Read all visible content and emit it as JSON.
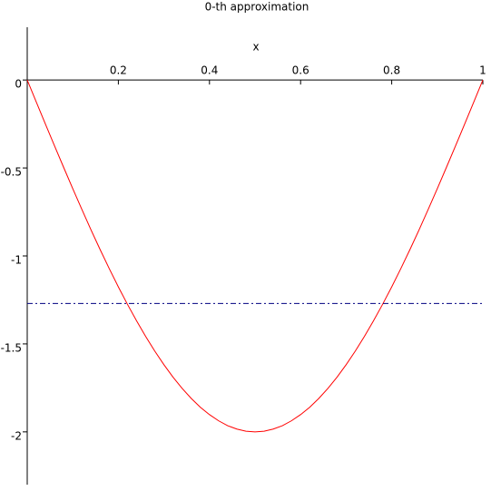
{
  "chart_data": {
    "type": "line",
    "title": "0-th approximation",
    "x_label": "x",
    "xlim": [
      0,
      1
    ],
    "ylim": [
      -2.3,
      0.3
    ],
    "xticks": [
      0.2,
      0.4,
      0.6,
      0.8,
      1
    ],
    "yticks": [
      0,
      -0.5,
      -1,
      -1.5,
      -2
    ],
    "series": [
      {
        "color": "#ff0000",
        "dash": "solid",
        "x": [
          0,
          0.02,
          0.04,
          0.06,
          0.08,
          0.1,
          0.12,
          0.14,
          0.16,
          0.18,
          0.2,
          0.22,
          0.24,
          0.26,
          0.28,
          0.3,
          0.32,
          0.34,
          0.36,
          0.38,
          0.4,
          0.42,
          0.44,
          0.46,
          0.48,
          0.5,
          0.52,
          0.54,
          0.56,
          0.58,
          0.6,
          0.62,
          0.64,
          0.66,
          0.68,
          0.7,
          0.72,
          0.74,
          0.76,
          0.78,
          0.8,
          0.82,
          0.84,
          0.86,
          0.88,
          0.9,
          0.92,
          0.94,
          0.96,
          0.98,
          1
        ],
        "values": [
          0,
          -0.126,
          -0.251,
          -0.375,
          -0.497,
          -0.618,
          -0.736,
          -0.852,
          -0.964,
          -1.072,
          -1.176,
          -1.275,
          -1.369,
          -1.458,
          -1.541,
          -1.618,
          -1.689,
          -1.753,
          -1.81,
          -1.86,
          -1.902,
          -1.937,
          -1.965,
          -1.984,
          -1.996,
          -2,
          -1.996,
          -1.984,
          -1.965,
          -1.937,
          -1.902,
          -1.86,
          -1.81,
          -1.753,
          -1.689,
          -1.618,
          -1.541,
          -1.458,
          -1.369,
          -1.275,
          -1.176,
          -1.072,
          -0.964,
          -0.852,
          -0.736,
          -0.618,
          -0.497,
          -0.375,
          -0.251,
          -0.126,
          0
        ]
      },
      {
        "color": "#000080",
        "dash": "dashdot",
        "x": [
          0,
          1
        ],
        "values": [
          -1.27,
          -1.27
        ]
      }
    ]
  }
}
